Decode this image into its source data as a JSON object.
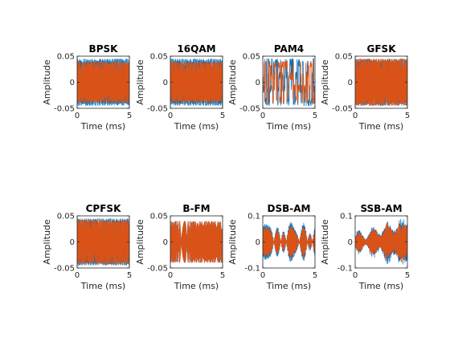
{
  "figure": {
    "background": "#ffffff"
  },
  "colors": {
    "series1": "#0072BD",
    "series2": "#D95319",
    "axis": "#262626"
  },
  "chart_data": [
    {
      "type": "line",
      "title": "BPSK",
      "xlabel": "Time (ms)",
      "ylabel": "Amplitude",
      "xlim": [
        0,
        5
      ],
      "ylim": [
        -0.05,
        0.05
      ],
      "xticks": [
        "0",
        "5"
      ],
      "yticks": [
        "-0.05",
        "0",
        "0.05"
      ],
      "style": "fsk",
      "amp": [
        0.045,
        0.04
      ],
      "seed": 11,
      "grid": false,
      "box": true
    },
    {
      "type": "line",
      "title": "16QAM",
      "xlabel": "Time (ms)",
      "ylabel": "Amplitude",
      "xlim": [
        0,
        5
      ],
      "ylim": [
        -0.05,
        0.05
      ],
      "xticks": [
        "0",
        "5"
      ],
      "yticks": [
        "-0.05",
        "0",
        "0.05"
      ],
      "style": "fsk",
      "amp": [
        0.045,
        0.04
      ],
      "seed": 23,
      "grid": false,
      "box": true
    },
    {
      "type": "line",
      "title": "PAM4",
      "xlabel": "Time (ms)",
      "ylabel": "Amplitude",
      "xlim": [
        0,
        5
      ],
      "ylim": [
        -0.05,
        0.05
      ],
      "xticks": [
        "0",
        "5"
      ],
      "yticks": [
        "-0.05",
        "0",
        "0.05"
      ],
      "style": "pam",
      "amp": [
        0.045,
        0.04
      ],
      "seed": 37,
      "grid": false,
      "box": true
    },
    {
      "type": "line",
      "title": "GFSK",
      "xlabel": "Time (ms)",
      "ylabel": "Amplitude",
      "xlim": [
        0,
        5
      ],
      "ylim": [
        -0.05,
        0.05
      ],
      "xticks": [
        "0",
        "5"
      ],
      "yticks": [
        "-0.05",
        "0",
        "0.05"
      ],
      "style": "fsk",
      "amp": [
        0.045,
        0.045
      ],
      "seed": 41,
      "grid": false,
      "box": true
    },
    {
      "type": "line",
      "title": "CPFSK",
      "xlabel": "Time (ms)",
      "ylabel": "Amplitude",
      "xlim": [
        0,
        5
      ],
      "ylim": [
        -0.05,
        0.05
      ],
      "xticks": [
        "0",
        "5"
      ],
      "yticks": [
        "-0.05",
        "0",
        "0.05"
      ],
      "style": "fsk",
      "amp": [
        0.045,
        0.043
      ],
      "seed": 53,
      "grid": false,
      "box": true
    },
    {
      "type": "line",
      "title": "B-FM",
      "xlabel": "Time (ms)",
      "ylabel": "Amplitude",
      "xlim": [
        0,
        5
      ],
      "ylim": [
        -0.05,
        0.05
      ],
      "xticks": [
        "0",
        "5"
      ],
      "yticks": [
        "-0.05",
        "0",
        "0.05"
      ],
      "style": "fm",
      "amp": [
        0.04,
        0.04
      ],
      "seed": 67,
      "grid": false,
      "box": true
    },
    {
      "type": "line",
      "title": "DSB-AM",
      "xlabel": "Time (ms)",
      "ylabel": "Amplitude",
      "xlim": [
        0,
        5
      ],
      "ylim": [
        -0.1,
        0.1
      ],
      "xticks": [
        "0",
        "5"
      ],
      "yticks": [
        "-0.1",
        "0",
        "0.1"
      ],
      "style": "dsbam",
      "amp": [
        0.085,
        0.07
      ],
      "seed": 79,
      "grid": false,
      "box": true
    },
    {
      "type": "line",
      "title": "SSB-AM",
      "xlabel": "Time (ms)",
      "ylabel": "Amplitude",
      "xlim": [
        0,
        5
      ],
      "ylim": [
        -0.1,
        0.1
      ],
      "xticks": [
        "0",
        "5"
      ],
      "yticks": [
        "-0.1",
        "0",
        "0.1"
      ],
      "style": "ssbam",
      "amp": [
        0.09,
        0.08
      ],
      "seed": 83,
      "grid": false,
      "box": true
    }
  ]
}
